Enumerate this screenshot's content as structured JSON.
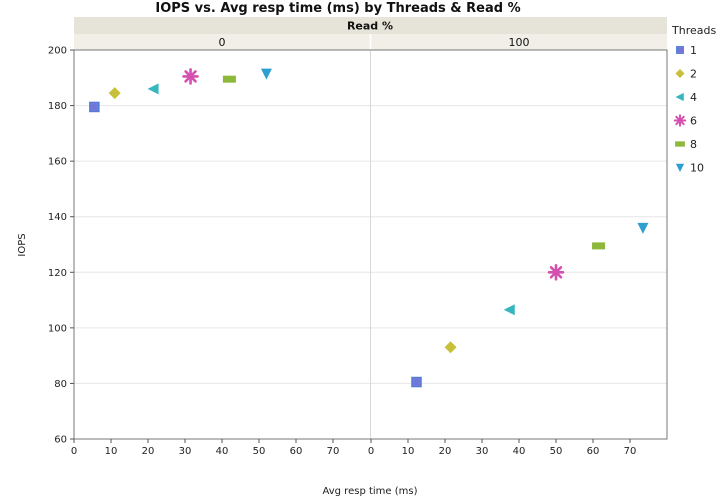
{
  "chart_data": {
    "type": "scatter",
    "title": "IOPS vs. Avg resp time (ms) by Threads & Read %",
    "facet_header": "Read %",
    "xlabel": "Avg resp time (ms)",
    "ylabel": "IOPS",
    "xlim": [
      0,
      80
    ],
    "ylim": [
      60,
      200
    ],
    "x_ticks": [
      0,
      10,
      20,
      30,
      40,
      50,
      60,
      70
    ],
    "y_ticks": [
      60,
      80,
      100,
      120,
      140,
      160,
      180,
      200
    ],
    "grid": true,
    "legend_title": "Threads",
    "legend_position": "right",
    "panels": [
      {
        "label": "0",
        "key": "p0"
      },
      {
        "label": "100",
        "key": "p100"
      }
    ],
    "series": [
      {
        "name": "1",
        "color": "#4a7fd4",
        "marker": "square",
        "p0": [
          5.5,
          179.5
        ],
        "p100": [
          12.3,
          80.5
        ]
      },
      {
        "name": "2",
        "color": "#c8bf3a",
        "marker": "diamond",
        "p0": [
          11.0,
          184.5
        ],
        "p100": [
          21.5,
          93.0
        ]
      },
      {
        "name": "4",
        "color": "#36b6bf",
        "marker": "triangle-left",
        "p0": [
          21.5,
          186.0
        ],
        "p100": [
          37.5,
          106.5
        ]
      },
      {
        "name": "6",
        "color": "#d44fb0",
        "marker": "asterisk",
        "p0": [
          31.5,
          190.5
        ],
        "p100": [
          50.0,
          120.0
        ]
      },
      {
        "name": "8",
        "color": "#8db83a",
        "marker": "bar",
        "p0": [
          42.0,
          189.5
        ],
        "p100": [
          61.5,
          129.5
        ]
      },
      {
        "name": "10",
        "color": "#2ea0d0",
        "marker": "triangle-down",
        "p0": [
          52.0,
          191.5
        ],
        "p100": [
          73.5,
          136.0
        ]
      }
    ]
  }
}
